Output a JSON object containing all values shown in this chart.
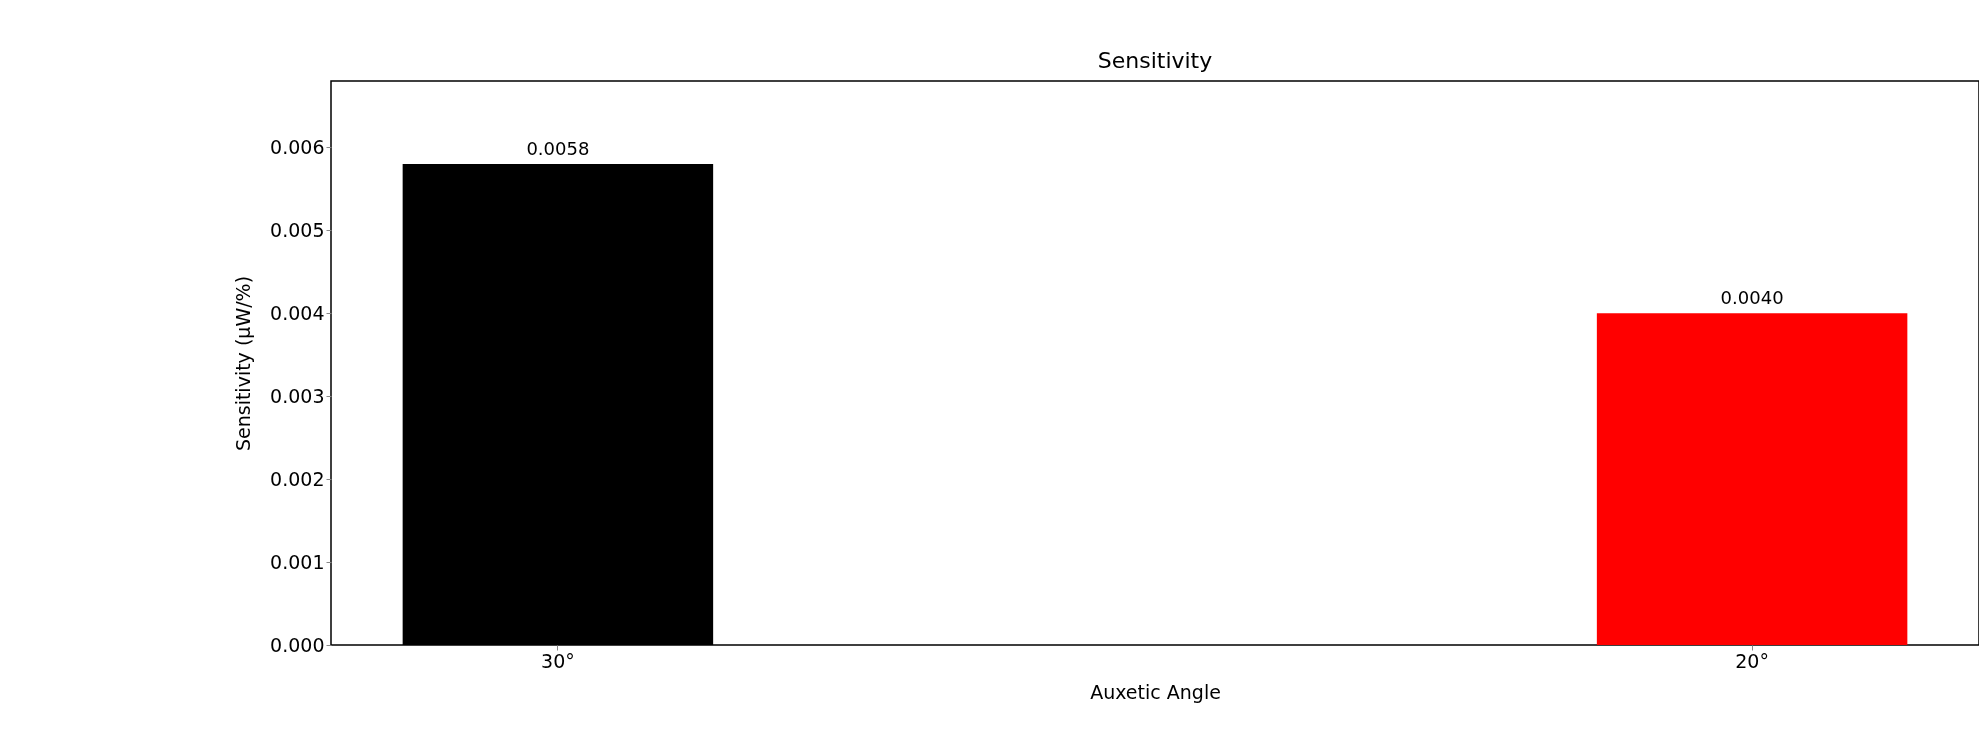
{
  "chart_data": {
    "type": "bar",
    "title": "Sensitivity",
    "xlabel": "Auxetic Angle",
    "ylabel": "Sensitivity (μW/%)",
    "categories": [
      "30°",
      "20°"
    ],
    "values": [
      0.0058,
      0.004
    ],
    "colors": [
      "#000000",
      "#ff0000"
    ],
    "value_labels": [
      "0.0058",
      "0.0040"
    ],
    "ylim": [
      0,
      0.0068
    ],
    "yticks": [
      {
        "value": 0,
        "label": "0.000"
      },
      {
        "value": 0.001,
        "label": "0.001"
      },
      {
        "value": 0.002,
        "label": "0.002"
      },
      {
        "value": 0.003,
        "label": "0.003"
      },
      {
        "value": 0.004,
        "label": "0.004"
      },
      {
        "value": 0.005,
        "label": "0.005"
      },
      {
        "value": 0.006,
        "label": "0.006"
      }
    ],
    "grid": false
  }
}
